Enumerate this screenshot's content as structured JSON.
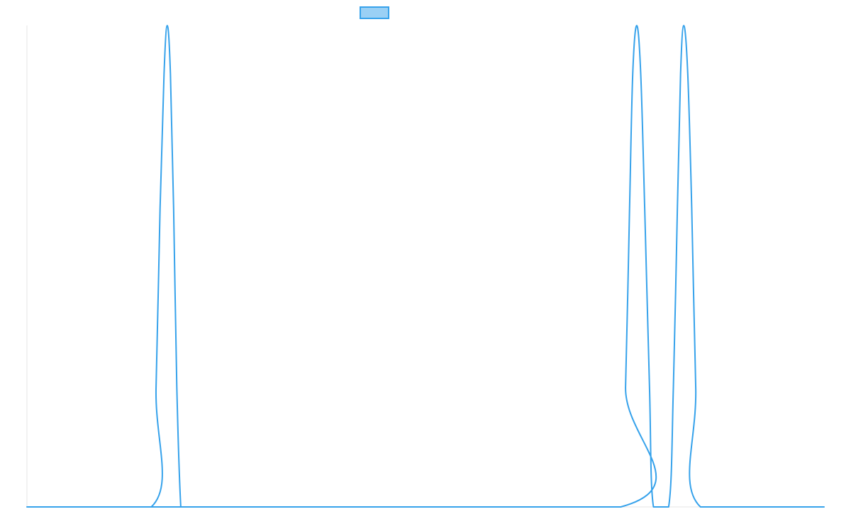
{
  "chart_data": {
    "type": "line",
    "title": "",
    "xlabel": "",
    "ylabel": "",
    "ylim": [
      0,
      1
    ],
    "xlim": [
      0,
      100
    ],
    "grid": false,
    "legend": {
      "placement": "top-center",
      "entries": [
        {
          "label": ""
        }
      ]
    },
    "series": [
      {
        "color": "#36a2eb",
        "fill_color": "#9ad0f5",
        "x": [
          0,
          15.6,
          16.2,
          16.7,
          17.2,
          17.6,
          18.0,
          18.4,
          18.8,
          19.3,
          19.6,
          74.5,
          75.1,
          75.6,
          76.0,
          76.5,
          77.0,
          77.5,
          78.1,
          78.6,
          80.5,
          81.1,
          81.6,
          82.0,
          82.4,
          82.9,
          83.4,
          83.9,
          84.5,
          100
        ],
        "y": [
          0,
          0,
          0.25,
          0.62,
          0.9,
          1.0,
          0.9,
          0.62,
          0.25,
          0,
          0,
          0,
          0.25,
          0.62,
          0.9,
          1.0,
          0.9,
          0.62,
          0.25,
          0,
          0,
          0.25,
          0.62,
          0.9,
          1.0,
          0.9,
          0.62,
          0.25,
          0,
          0
        ]
      }
    ]
  }
}
